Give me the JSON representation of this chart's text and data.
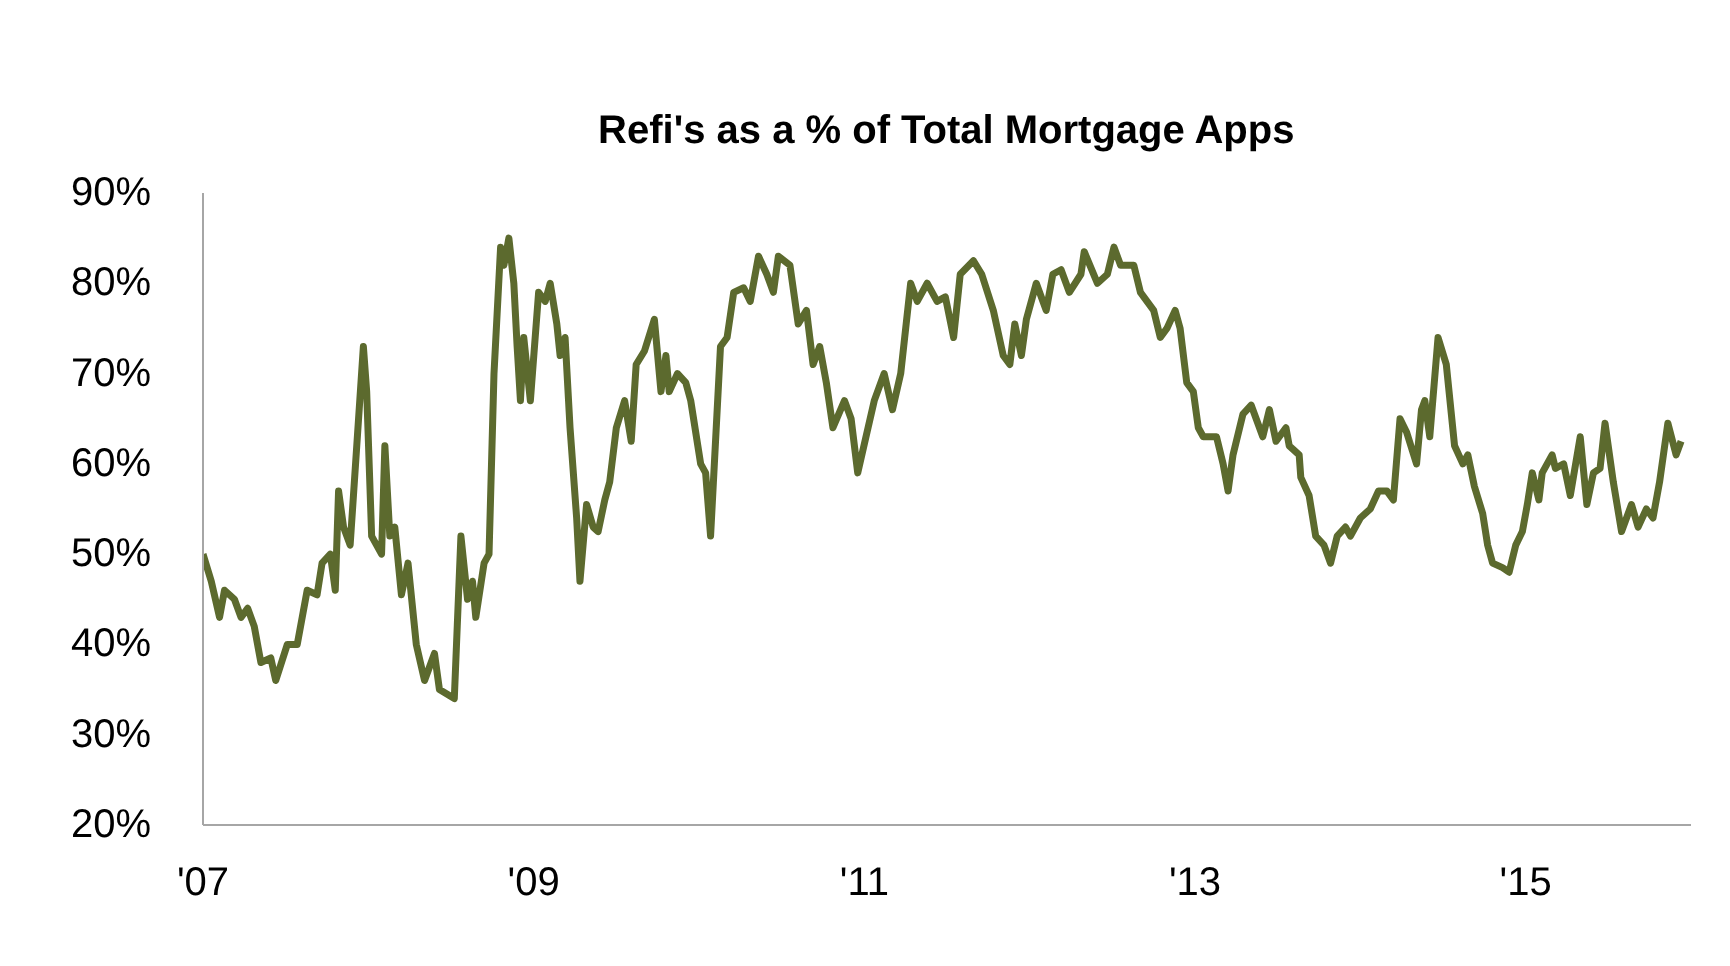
{
  "chart_data": {
    "type": "line",
    "title": "Refi's as a % of Total Mortgage Apps",
    "x": [
      2007.0,
      2007.05,
      2007.1,
      2007.13,
      2007.19,
      2007.23,
      2007.27,
      2007.31,
      2007.35,
      2007.41,
      2007.44,
      2007.51,
      2007.57,
      2007.63,
      2007.69,
      2007.72,
      2007.77,
      2007.8,
      2007.82,
      2007.85,
      2007.89,
      2007.97,
      2007.99,
      2008.02,
      2008.08,
      2008.1,
      2008.13,
      2008.16,
      2008.2,
      2008.24,
      2008.29,
      2008.34,
      2008.4,
      2008.43,
      2008.52,
      2008.56,
      2008.6,
      2008.63,
      2008.65,
      2008.7,
      2008.73,
      2008.76,
      2008.8,
      2008.82,
      2008.85,
      2008.88,
      2008.9,
      2008.92,
      2008.94,
      2008.98,
      2009.03,
      2009.07,
      2009.1,
      2009.14,
      2009.16,
      2009.19,
      2009.22,
      2009.26,
      2009.28,
      2009.32,
      2009.36,
      2009.39,
      2009.43,
      2009.46,
      2009.5,
      2009.55,
      2009.59,
      2009.62,
      2009.67,
      2009.73,
      2009.77,
      2009.8,
      2009.82,
      2009.87,
      2009.92,
      2009.95,
      2010.01,
      2010.04,
      2010.07,
      2010.13,
      2010.17,
      2010.21,
      2010.27,
      2010.31,
      2010.36,
      2010.41,
      2010.45,
      2010.48,
      2010.55,
      2010.6,
      2010.65,
      2010.69,
      2010.73,
      2010.77,
      2010.81,
      2010.88,
      2010.92,
      2010.96,
      2011.01,
      2011.06,
      2011.12,
      2011.17,
      2011.22,
      2011.28,
      2011.32,
      2011.38,
      2011.44,
      2011.49,
      2011.54,
      2011.58,
      2011.66,
      2011.71,
      2011.78,
      2011.84,
      2011.88,
      2011.91,
      2011.95,
      2011.98,
      2012.04,
      2012.1,
      2012.14,
      2012.19,
      2012.24,
      2012.31,
      2012.33,
      2012.41,
      2012.47,
      2012.51,
      2012.55,
      2012.63,
      2012.67,
      2012.75,
      2012.79,
      2012.83,
      2012.88,
      2012.91,
      2012.95,
      2012.99,
      2013.02,
      2013.05,
      2013.13,
      2013.17,
      2013.2,
      2013.23,
      2013.29,
      2013.34,
      2013.41,
      2013.45,
      2013.49,
      2013.55,
      2013.57,
      2013.63,
      2013.64,
      2013.69,
      2013.73,
      2013.78,
      2013.82,
      2013.86,
      2013.91,
      2013.94,
      2014.0,
      2014.06,
      2014.11,
      2014.16,
      2014.2,
      2014.24,
      2014.28,
      2014.34,
      2014.37,
      2014.39,
      2014.42,
      2014.47,
      2014.52,
      2014.57,
      2014.62,
      2014.65,
      2014.69,
      2014.74,
      2014.77,
      2014.8,
      2014.86,
      2014.9,
      2014.94,
      2014.98,
      2015.01,
      2015.04,
      2015.08,
      2015.1,
      2015.16,
      2015.18,
      2015.23,
      2015.27,
      2015.33,
      2015.37,
      2015.41,
      2015.45,
      2015.48,
      2015.53,
      2015.58,
      2015.64,
      2015.68,
      2015.73,
      2015.77,
      2015.81,
      2015.86,
      2015.91,
      2015.94
    ],
    "series": [
      {
        "color": "#5c6a2e",
        "values": [
          50,
          47,
          43,
          46,
          45,
          43,
          44,
          42,
          38,
          38.5,
          36,
          40,
          40,
          46,
          45.5,
          49,
          50,
          46,
          57,
          53,
          51,
          73,
          68,
          52,
          50,
          62,
          52,
          53,
          45.5,
          49,
          40,
          36,
          39,
          35,
          34,
          52,
          45,
          47,
          43,
          49,
          50,
          70,
          84,
          82,
          85,
          80,
          73,
          67,
          74,
          67,
          79,
          78,
          80,
          75.5,
          72,
          74,
          64,
          54,
          47,
          55.5,
          53,
          52.5,
          56,
          58,
          64,
          67,
          62.5,
          71,
          72.5,
          76,
          68,
          72,
          68,
          70,
          69,
          67,
          60,
          59,
          52,
          73,
          74,
          79,
          79.5,
          78,
          83,
          81,
          79,
          83,
          82,
          75.5,
          77,
          71,
          73,
          69,
          64,
          67,
          65,
          59,
          63,
          67,
          70,
          66,
          70,
          80,
          78,
          80,
          78,
          78.5,
          74,
          81,
          82.5,
          81,
          77,
          72,
          71,
          75.5,
          72,
          76,
          80,
          77,
          81,
          81.5,
          79,
          81,
          83.5,
          80,
          81,
          84,
          82,
          82,
          79,
          77,
          74,
          75,
          77,
          75,
          69,
          68,
          64,
          63,
          63,
          60,
          57,
          61,
          65.5,
          66.5,
          63,
          66,
          62.5,
          64,
          62,
          61,
          58.5,
          56.5,
          52,
          51,
          49,
          52,
          53,
          52,
          54,
          55,
          57,
          57,
          56,
          65,
          63.5,
          60,
          66,
          67,
          63,
          74,
          71,
          62,
          60,
          61,
          57.5,
          54.5,
          51,
          49,
          48.5,
          48,
          51,
          52.5,
          55.5,
          59,
          56,
          59,
          61,
          59.5,
          60,
          56.5,
          63,
          55.5,
          59,
          59.5,
          64.5,
          58,
          52.5,
          55.5,
          53,
          55,
          54,
          58,
          64.5,
          61,
          62.5
        ]
      }
    ],
    "xlim": [
      2007,
      2016
    ],
    "xticks": [
      {
        "value": 2007,
        "label": "'07"
      },
      {
        "value": 2009,
        "label": "'09"
      },
      {
        "value": 2011,
        "label": "'11"
      },
      {
        "value": 2013,
        "label": "'13"
      },
      {
        "value": 2015,
        "label": "'15"
      }
    ],
    "ylim": [
      20,
      90
    ],
    "yticks": [
      {
        "value": 20,
        "label": "20%"
      },
      {
        "value": 30,
        "label": "30%"
      },
      {
        "value": 40,
        "label": "40%"
      },
      {
        "value": 50,
        "label": "50%"
      },
      {
        "value": 60,
        "label": "60%"
      },
      {
        "value": 70,
        "label": "70%"
      },
      {
        "value": 80,
        "label": "80%"
      },
      {
        "value": 90,
        "label": "90%"
      }
    ],
    "grid": false,
    "marker": "none",
    "line_style": "solid"
  }
}
